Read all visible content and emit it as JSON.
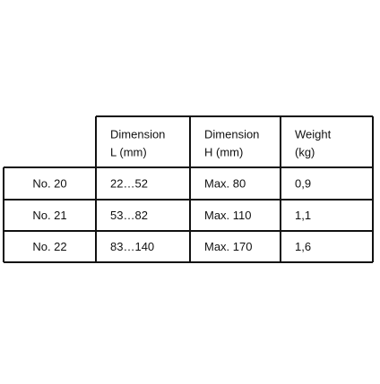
{
  "table": {
    "header": [
      [
        "Dimension",
        "L (mm)"
      ],
      [
        "Dimension",
        "H (mm)"
      ],
      [
        "Weight",
        "(kg)"
      ]
    ],
    "rows": [
      [
        "No. 20",
        "22…52",
        "Max. 80",
        "0,9"
      ],
      [
        "No. 21",
        "53…82",
        "Max. 110",
        "1,1"
      ],
      [
        "No. 22",
        "83…140",
        "Max. 170",
        "1,6"
      ]
    ]
  }
}
